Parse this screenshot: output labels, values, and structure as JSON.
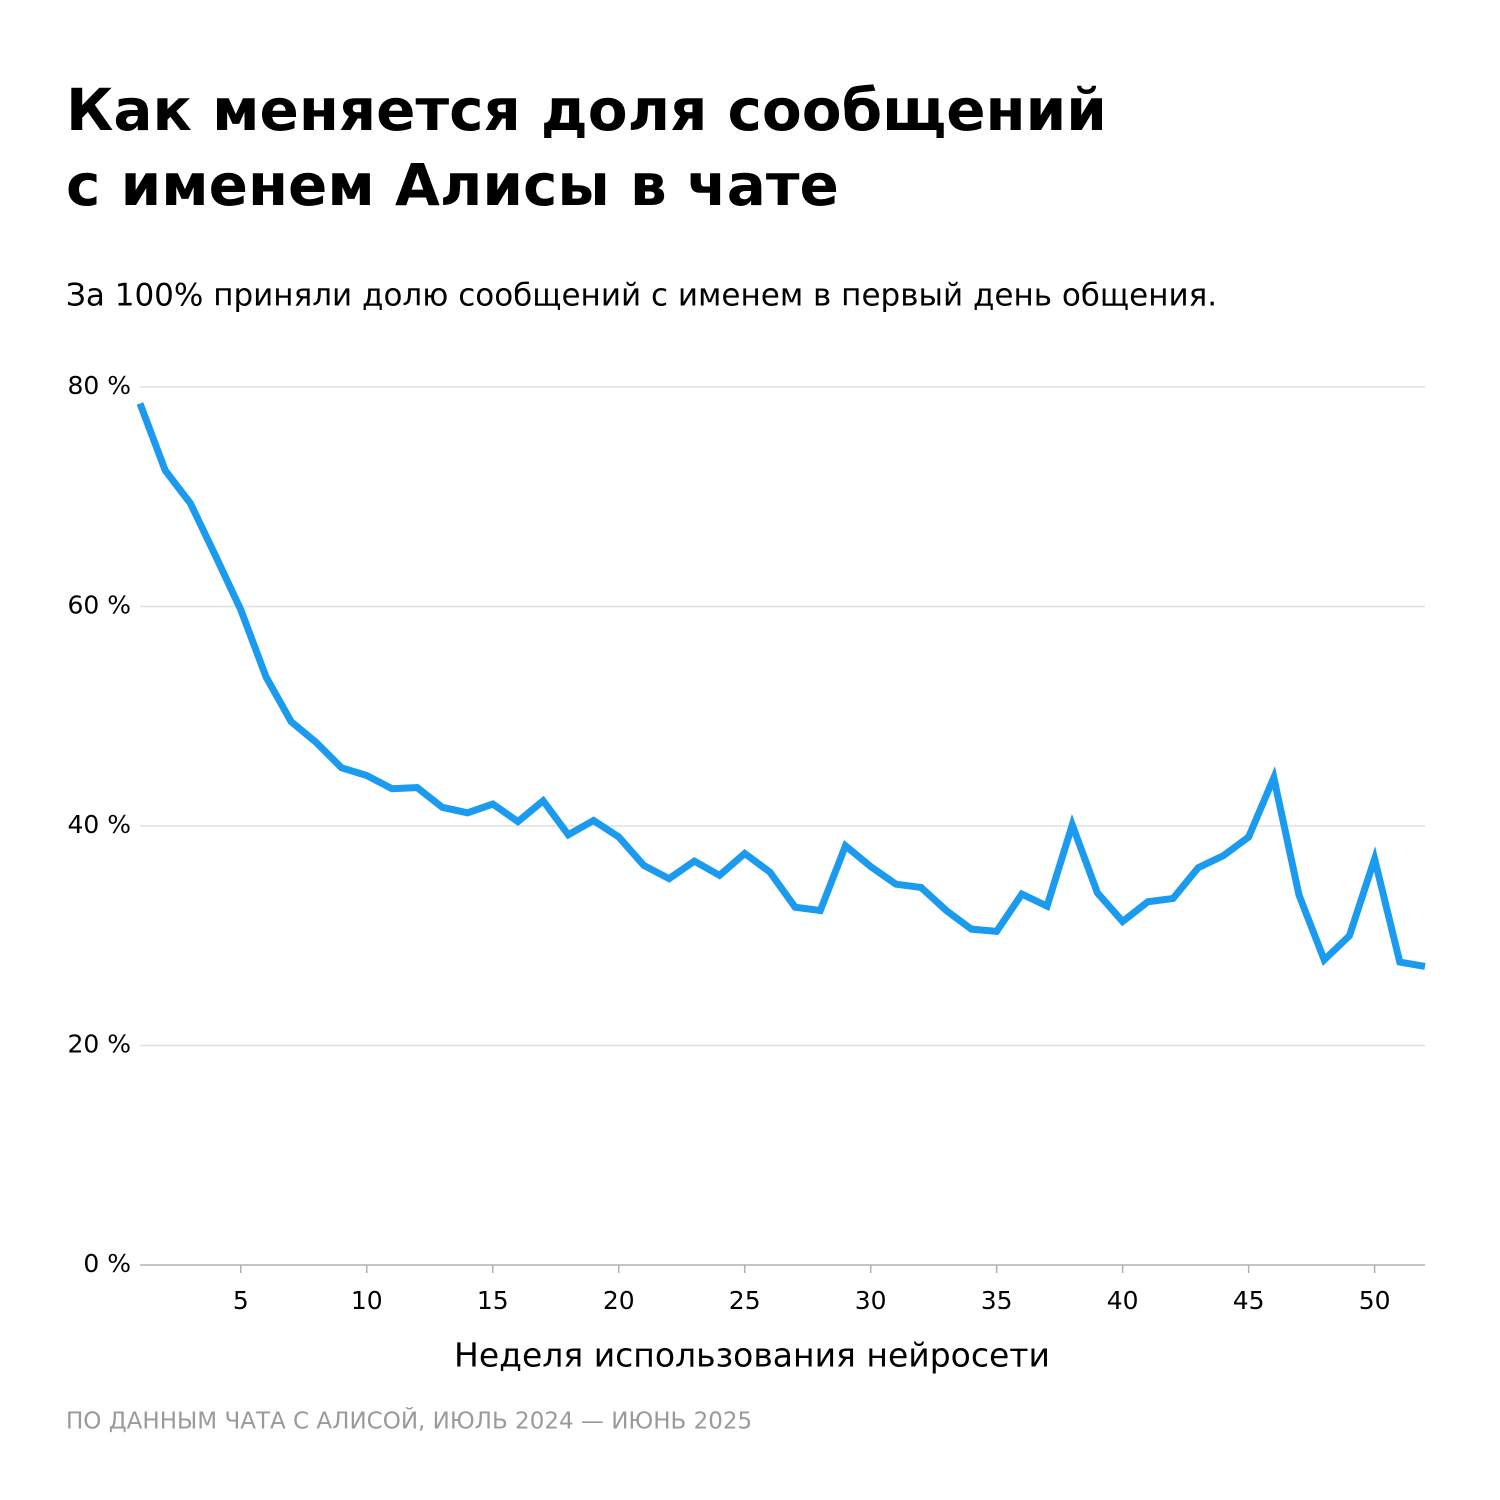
{
  "chart_data": {
    "type": "line",
    "title": [
      "Как меняется доля сообщений",
      "с именем Алисы в чате"
    ],
    "subtitle": "За 100% приняли долю сообщений с именем в первый день общения.",
    "x_label": "Неделя использования нейросети",
    "source": "ПО ДАННЫМ ЧАТА С АЛИСОЙ, ИЮЛЬ 2024 — ИЮНЬ 2025",
    "x": [
      1,
      2,
      3,
      4,
      5,
      6,
      7,
      8,
      9,
      10,
      11,
      12,
      13,
      14,
      15,
      16,
      17,
      18,
      19,
      20,
      21,
      22,
      23,
      24,
      25,
      26,
      27,
      28,
      29,
      30,
      31,
      32,
      33,
      34,
      35,
      36,
      37,
      38,
      39,
      40,
      41,
      42,
      43,
      44,
      45,
      46,
      47,
      48,
      49,
      50,
      51,
      52
    ],
    "series": [
      {
        "color": "#1a9bf0",
        "values": [
          78.5,
          72.4,
          69.4,
          64.6,
          59.7,
          53.6,
          49.5,
          47.6,
          45.3,
          44.6,
          43.4,
          43.5,
          41.7,
          41.2,
          42.0,
          40.4,
          42.3,
          39.2,
          40.5,
          39.0,
          36.4,
          35.2,
          36.8,
          35.5,
          37.5,
          35.8,
          32.6,
          32.3,
          38.2,
          36.3,
          34.7,
          34.4,
          32.3,
          30.6,
          30.4,
          33.8,
          32.7,
          40.1,
          33.9,
          31.3,
          33.1,
          33.4,
          36.2,
          37.3,
          39.0,
          44.4,
          33.7,
          27.8,
          30.0,
          37.0,
          27.6,
          27.2
        ]
      }
    ],
    "xlim": [
      1,
      52
    ],
    "xticks": [
      5,
      10,
      15,
      20,
      25,
      30,
      35,
      40,
      45,
      50
    ],
    "ylim": [
      0,
      80
    ],
    "yticks": [
      {
        "value": 0,
        "label": "0 %"
      },
      {
        "value": 20,
        "label": "20 %"
      },
      {
        "value": 40,
        "label": "40 %"
      },
      {
        "value": 60,
        "label": "60 %"
      },
      {
        "value": 80,
        "label": "80 %"
      }
    ],
    "grid": true
  }
}
